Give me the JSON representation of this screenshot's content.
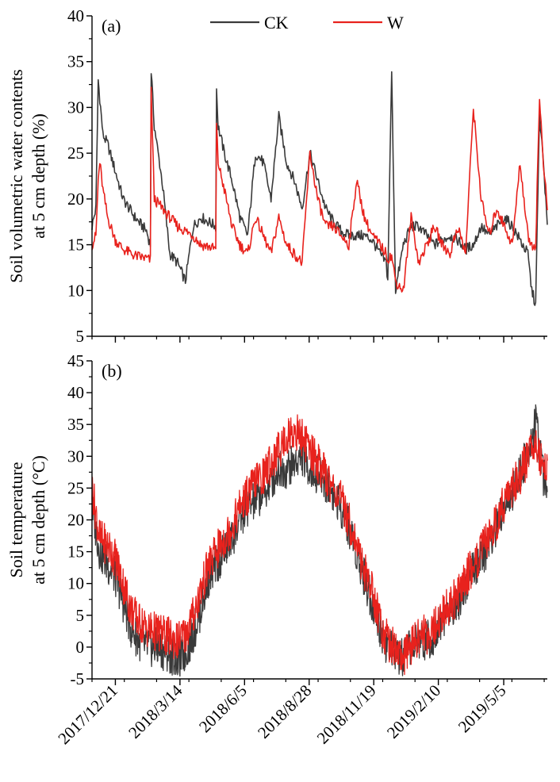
{
  "legend": {
    "position": "top-center",
    "entries": [
      {
        "label": "CK",
        "color": "#3a3a3a"
      },
      {
        "label": "W",
        "color": "#e8221d"
      }
    ]
  },
  "x_axis": {
    "tick_labels": [
      "2017/12/21",
      "2018/3/14",
      "2018/6/5",
      "2018/8/28",
      "2018/11/19",
      "2019/2/10",
      "2019/5/5"
    ],
    "tick_days": [
      30,
      113,
      196,
      279,
      362,
      445,
      529
    ],
    "start_date": "2017-11-21",
    "range_days": [
      0,
      585
    ]
  },
  "chart_data": [
    {
      "type": "line",
      "panel_label": "(a)",
      "ylabel_lines": [
        "Soil volumetric water contents",
        "at 5 cm depth (%)"
      ],
      "ylim": [
        5,
        40
      ],
      "yticks": [
        5,
        10,
        15,
        20,
        25,
        30,
        35,
        40
      ],
      "grid": false,
      "x": [
        0,
        5,
        8,
        10,
        14,
        20,
        30,
        40,
        55,
        70,
        75,
        76,
        78,
        80,
        90,
        100,
        110,
        120,
        130,
        140,
        150,
        159,
        160,
        162,
        170,
        180,
        190,
        200,
        210,
        220,
        230,
        240,
        250,
        260,
        270,
        280,
        290,
        300,
        310,
        320,
        330,
        340,
        350,
        360,
        370,
        378,
        380,
        385,
        390,
        400,
        410,
        420,
        430,
        440,
        450,
        460,
        470,
        480,
        490,
        500,
        510,
        520,
        530,
        540,
        550,
        560,
        565,
        570,
        575,
        580,
        585
      ],
      "series": [
        {
          "name": "CK",
          "color": "#3a3a3a",
          "values": [
            17,
            19,
            33,
            31,
            27,
            26,
            23,
            20,
            18,
            16.5,
            15,
            34,
            31,
            28,
            22,
            14,
            13,
            11,
            17,
            18,
            17.5,
            17,
            32,
            28,
            25,
            22,
            18,
            16,
            25,
            24,
            20,
            29,
            24,
            22,
            19,
            25,
            22,
            19,
            17.5,
            16.5,
            16,
            16,
            16,
            15.5,
            14,
            13,
            11,
            34,
            10,
            15,
            17,
            17,
            16,
            15,
            15.5,
            16,
            15.5,
            14.5,
            15,
            17,
            16,
            17,
            18,
            17,
            15.5,
            14,
            10,
            8.5,
            29,
            24,
            17
          ]
        },
        {
          "name": "W",
          "color": "#e8221d",
          "values": [
            15,
            16,
            22,
            24,
            21,
            18,
            15.5,
            14.5,
            13.8,
            13.5,
            13.3,
            32,
            26,
            20,
            19,
            18,
            17,
            16.5,
            16,
            15,
            14.8,
            14.5,
            28,
            24,
            21,
            17,
            15,
            14,
            18,
            16,
            14,
            18,
            15,
            14,
            13,
            25,
            20,
            17,
            17,
            16,
            15,
            22,
            18,
            16,
            15,
            14,
            13.5,
            13.8,
            11,
            10,
            18,
            13,
            15,
            17,
            15,
            14,
            17,
            14,
            30,
            20,
            16,
            19,
            17,
            15,
            24,
            16,
            15,
            14.8,
            31,
            24,
            19
          ]
        }
      ]
    },
    {
      "type": "line",
      "panel_label": "(b)",
      "ylabel_lines": [
        "Soil temperature",
        "at 5 cm depth (°C)"
      ],
      "ylim": [
        -5,
        45
      ],
      "yticks": [
        -5,
        0,
        5,
        10,
        15,
        20,
        25,
        30,
        35,
        40,
        45
      ],
      "grid": false,
      "x": [
        0,
        10,
        20,
        30,
        40,
        50,
        60,
        70,
        80,
        90,
        100,
        110,
        120,
        130,
        140,
        150,
        160,
        170,
        180,
        190,
        200,
        210,
        220,
        230,
        240,
        250,
        260,
        270,
        280,
        290,
        300,
        310,
        320,
        330,
        340,
        350,
        360,
        370,
        380,
        390,
        400,
        410,
        420,
        430,
        440,
        450,
        460,
        470,
        480,
        490,
        500,
        510,
        520,
        530,
        540,
        550,
        560,
        570,
        580,
        585
      ],
      "series": [
        {
          "name": "CK",
          "color": "#3a3a3a",
          "values": [
            22,
            15,
            13,
            11,
            7,
            3,
            1,
            0,
            0,
            -0.5,
            -1,
            -2,
            -1,
            2,
            6,
            11,
            13,
            15,
            17,
            20,
            22,
            23,
            24,
            26,
            28,
            28,
            29,
            30,
            28,
            27,
            26,
            24,
            22,
            19,
            15,
            11,
            7,
            3,
            0,
            -1,
            -2,
            0,
            1,
            1,
            2,
            4,
            6,
            7,
            10,
            12,
            14,
            16,
            19,
            22,
            24,
            27,
            31,
            35,
            27,
            26
          ]
        },
        {
          "name": "W",
          "color": "#e8221d",
          "values": [
            25,
            17,
            16,
            14,
            10,
            6,
            4,
            3,
            2.5,
            2,
            1.5,
            1,
            2,
            5,
            9,
            13,
            15,
            17,
            19,
            22,
            24,
            26,
            27,
            29,
            31,
            33,
            34,
            33,
            31,
            29,
            27,
            25,
            23,
            20,
            16,
            12,
            9,
            4,
            1,
            0,
            -2,
            0,
            2,
            2,
            3,
            5,
            7,
            8,
            11,
            13,
            15,
            17,
            20,
            23,
            25,
            27,
            30,
            33,
            28,
            29
          ]
        }
      ]
    }
  ]
}
